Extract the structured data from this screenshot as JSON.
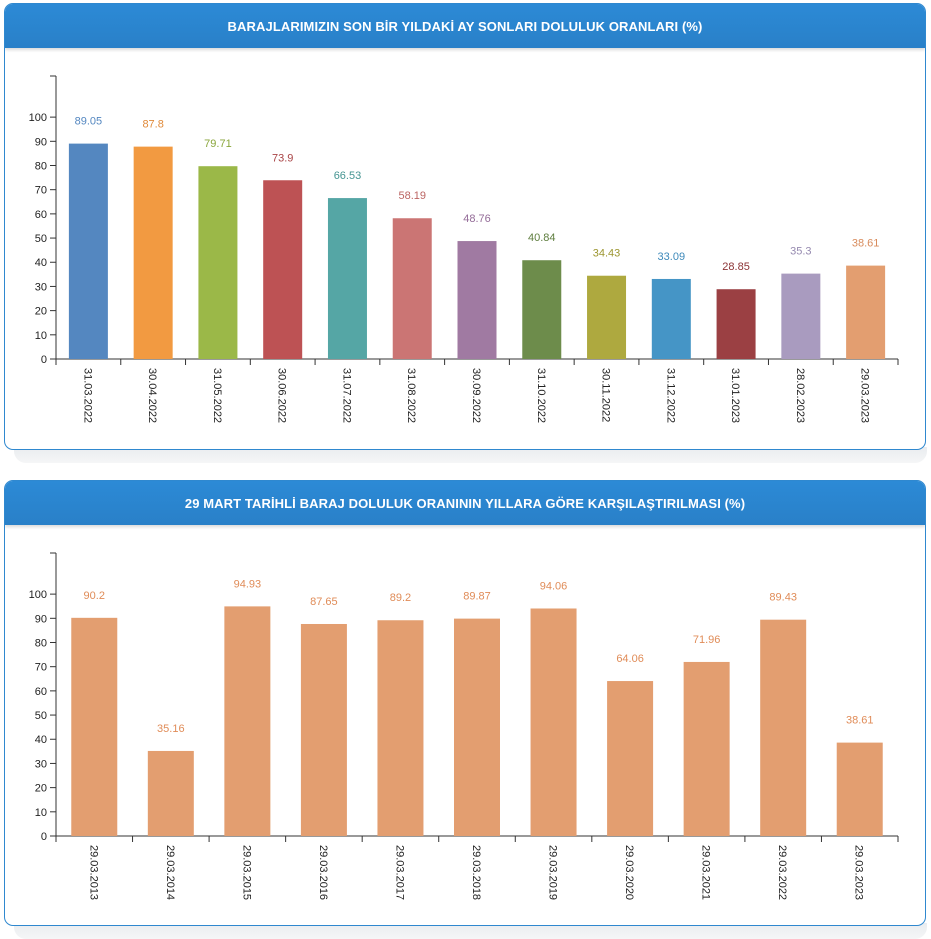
{
  "charts": [
    {
      "title": "BARAJLARIMIZIN SON BİR YILDAKİ AY SONLARI DOLULUK ORANLARI (%)"
    },
    {
      "title": "29 MART TARİHLİ BARAJ DOLULUK ORANININ YILLARA GÖRE KARŞILAŞTIRILMASI (%)"
    }
  ],
  "chart_data": [
    {
      "type": "bar",
      "title": "BARAJLARIMIZIN SON BİR YILDAKİ AY SONLARI DOLULUK ORANLARI (%)",
      "categories": [
        "31.03.2022",
        "30.04.2022",
        "31.05.2022",
        "30.06.2022",
        "31.07.2022",
        "31.08.2022",
        "30.09.2022",
        "31.10.2022",
        "30.11.2022",
        "31.12.2022",
        "31.01.2023",
        "28.02.2023",
        "29.03.2023"
      ],
      "values": [
        89.05,
        87.8,
        79.71,
        73.9,
        66.53,
        58.19,
        48.76,
        40.84,
        34.43,
        33.09,
        28.85,
        35.3,
        38.61
      ],
      "colors": [
        "#5487c0",
        "#f29a41",
        "#9bb848",
        "#bd5254",
        "#55a6a5",
        "#cb7574",
        "#a07aa2",
        "#6d8c4b",
        "#aea93f",
        "#4595c6",
        "#9b4043",
        "#a99bbf",
        "#e39e70"
      ],
      "value_label_colors": [
        "#5487c0",
        "#e08a3a",
        "#8aa63c",
        "#a94446",
        "#459592",
        "#bb6462",
        "#946c98",
        "#5e7d3e",
        "#9c9630",
        "#3d89ba",
        "#8c3436",
        "#968ab0",
        "#d88b5c"
      ],
      "yticks": [
        0,
        10,
        20,
        30,
        40,
        50,
        60,
        70,
        80,
        90,
        100
      ],
      "ylim": [
        0,
        117
      ],
      "grid": false,
      "legend": "none"
    },
    {
      "type": "bar",
      "title": "29 MART TARİHLİ BARAJ DOLULUK ORANININ YILLARA GÖRE KARŞILAŞTIRILMASI (%)",
      "categories": [
        "29.03.2013",
        "29.03.2014",
        "29.03.2015",
        "29.03.2016",
        "29.03.2017",
        "29.03.2018",
        "29.03.2019",
        "29.03.2020",
        "29.03.2021",
        "29.03.2022",
        "29.03.2023"
      ],
      "values": [
        90.2,
        35.16,
        94.93,
        87.65,
        89.2,
        89.87,
        94.06,
        64.06,
        71.96,
        89.43,
        38.61
      ],
      "colors": [
        "#e39e70",
        "#e39e70",
        "#e39e70",
        "#e39e70",
        "#e39e70",
        "#e39e70",
        "#e39e70",
        "#e39e70",
        "#e39e70",
        "#e39e70",
        "#e39e70"
      ],
      "value_label_colors": [
        "#e08c58",
        "#e08c58",
        "#e08c58",
        "#e08c58",
        "#e08c58",
        "#e08c58",
        "#e08c58",
        "#e08c58",
        "#e08c58",
        "#e08c58",
        "#e08c58"
      ],
      "yticks": [
        0,
        10,
        20,
        30,
        40,
        50,
        60,
        70,
        80,
        90,
        100
      ],
      "ylim": [
        0,
        117
      ],
      "grid": false,
      "legend": "none"
    }
  ]
}
